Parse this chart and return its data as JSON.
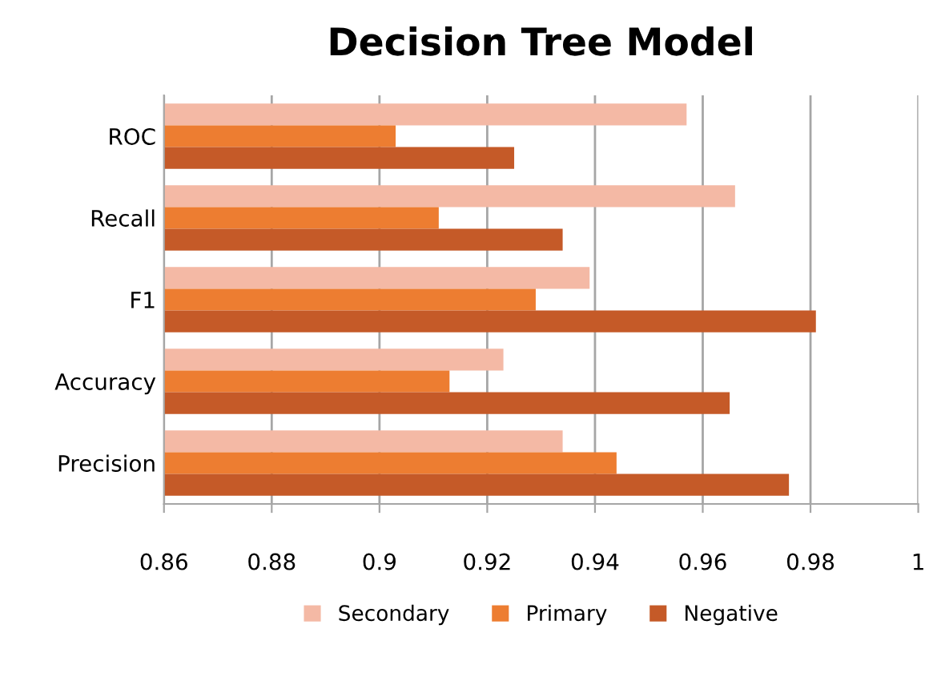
{
  "chart_data": {
    "type": "bar",
    "orientation": "horizontal",
    "title": "Decision Tree Model",
    "categories": [
      "ROC",
      "Recall",
      "F1",
      "Accuracy",
      "Precision"
    ],
    "series": [
      {
        "name": "Secondary",
        "color": "#f4b9a5",
        "values": [
          0.957,
          0.966,
          0.939,
          0.923,
          0.934
        ]
      },
      {
        "name": "Primary",
        "color": "#ed7d31",
        "values": [
          0.903,
          0.911,
          0.929,
          0.913,
          0.944
        ]
      },
      {
        "name": "Negative",
        "color": "#c55a28",
        "values": [
          0.925,
          0.934,
          0.981,
          0.965,
          0.976
        ]
      }
    ],
    "xlim": [
      0.86,
      1
    ],
    "xticks": [
      0.86,
      0.88,
      0.9,
      0.92,
      0.94,
      0.96,
      0.98,
      1
    ],
    "grid": "x",
    "legend": "bottom"
  }
}
